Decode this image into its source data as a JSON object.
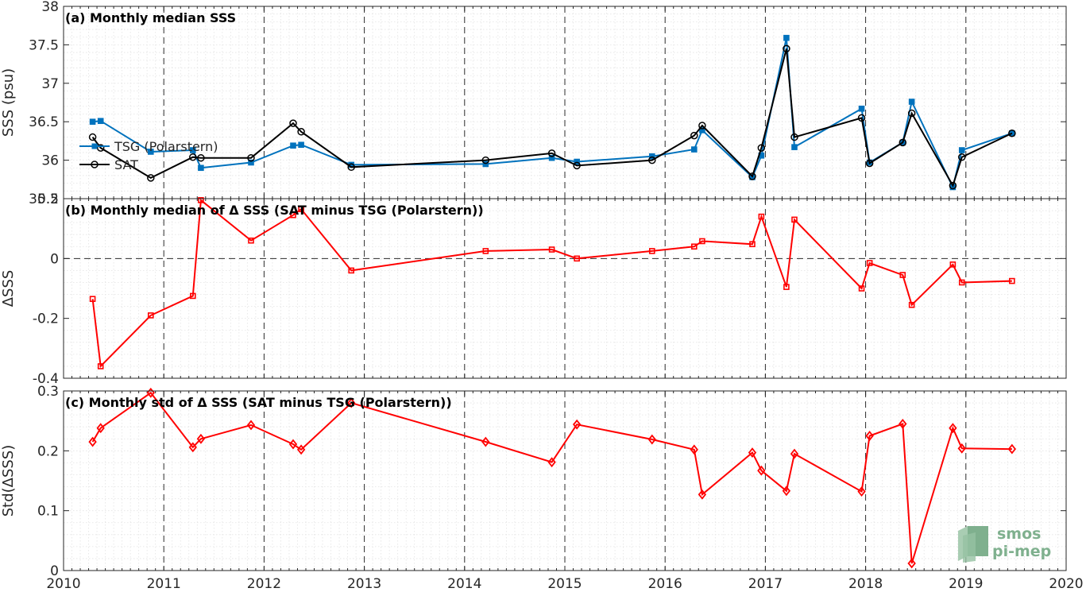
{
  "colors": {
    "tsg": "#0072BD",
    "sat": "#000000",
    "delta": "#FF0000",
    "logo": "#7fb08e"
  },
  "logo": {
    "line1": "smos",
    "line2": "pi-mep"
  },
  "chart_data": [
    {
      "type": "line",
      "title": "(a) Monthly median SSS",
      "xlabel": "",
      "ylabel": "SSS (psu)",
      "xlim": [
        2010,
        2020
      ],
      "ylim": [
        35.5,
        38
      ],
      "grid": true,
      "legend_position": "left",
      "x_ticks": [
        "2010",
        "2011",
        "2012",
        "2013",
        "2014",
        "2015",
        "2016",
        "2017",
        "2018",
        "2019",
        "2020"
      ],
      "y_ticks": [
        {
          "v": 35.5,
          "label": "35.5"
        },
        {
          "v": 36,
          "label": "36"
        },
        {
          "v": 36.5,
          "label": "36.5"
        },
        {
          "v": 37,
          "label": "37"
        },
        {
          "v": 37.5,
          "label": "37.5"
        },
        {
          "v": 38,
          "label": "38"
        }
      ],
      "series": [
        {
          "name": "TSG (Polarstern)",
          "color": "#0072BD",
          "marker": "square",
          "x": [
            2010.29,
            2010.37,
            2010.87,
            2011.29,
            2011.37,
            2011.87,
            2012.29,
            2012.37,
            2012.87,
            2014.21,
            2014.87,
            2015.12,
            2015.87,
            2016.29,
            2016.37,
            2016.87,
            2016.96,
            2017.21,
            2017.29,
            2017.96,
            2018.04,
            2018.37,
            2018.46,
            2018.87,
            2018.96,
            2019.46
          ],
          "y": [
            36.5,
            36.51,
            36.11,
            36.13,
            35.9,
            35.97,
            36.19,
            36.2,
            35.94,
            35.95,
            36.03,
            35.98,
            36.05,
            36.14,
            36.39,
            35.78,
            36.06,
            37.59,
            36.17,
            36.67,
            35.97,
            36.23,
            36.76,
            35.65,
            36.13,
            36.35
          ]
        },
        {
          "name": "SAT",
          "color": "#000000",
          "marker": "circle",
          "x": [
            2010.29,
            2010.37,
            2010.87,
            2011.29,
            2011.37,
            2011.87,
            2012.29,
            2012.37,
            2012.87,
            2014.21,
            2014.87,
            2015.12,
            2015.87,
            2016.29,
            2016.37,
            2016.87,
            2016.96,
            2017.21,
            2017.29,
            2017.96,
            2018.04,
            2018.37,
            2018.46,
            2018.87,
            2018.96,
            2019.46
          ],
          "y": [
            36.3,
            36.16,
            35.77,
            36.04,
            36.03,
            36.03,
            36.48,
            36.37,
            35.91,
            36.0,
            36.09,
            35.93,
            36.0,
            36.32,
            36.45,
            35.79,
            36.16,
            37.45,
            36.3,
            36.55,
            35.96,
            36.23,
            36.61,
            35.67,
            36.04,
            36.35
          ]
        }
      ]
    },
    {
      "type": "line",
      "title": "(b) Monthly median of Δ SSS (SAT minus TSG (Polarstern))",
      "xlabel": "",
      "ylabel": "ΔSSS",
      "xlim": [
        2010,
        2020
      ],
      "ylim": [
        -0.4,
        0.2
      ],
      "grid": true,
      "reference_line": 0,
      "x_ticks": [
        "2010",
        "2011",
        "2012",
        "2013",
        "2014",
        "2015",
        "2016",
        "2017",
        "2018",
        "2019",
        "2020"
      ],
      "y_ticks": [
        {
          "v": -0.4,
          "label": "-0.4"
        },
        {
          "v": -0.2,
          "label": "-0.2"
        },
        {
          "v": 0,
          "label": "0"
        },
        {
          "v": 0.2,
          "label": "0.2"
        }
      ],
      "series": [
        {
          "name": "",
          "color": "#FF0000",
          "marker": "square",
          "x": [
            2010.29,
            2010.37,
            2010.87,
            2011.29,
            2011.37,
            2011.87,
            2012.29,
            2012.37,
            2012.87,
            2014.21,
            2014.87,
            2015.12,
            2015.87,
            2016.29,
            2016.37,
            2016.87,
            2016.96,
            2017.21,
            2017.29,
            2017.96,
            2018.04,
            2018.37,
            2018.46,
            2018.87,
            2018.96,
            2019.46
          ],
          "y": [
            -0.135,
            -0.36,
            -0.19,
            -0.125,
            0.195,
            0.06,
            0.145,
            0.165,
            -0.04,
            0.025,
            0.03,
            0.0,
            0.025,
            0.04,
            0.058,
            0.048,
            0.14,
            -0.095,
            0.13,
            -0.1,
            -0.015,
            -0.055,
            -0.155,
            -0.02,
            -0.08,
            -0.075
          ]
        }
      ]
    },
    {
      "type": "line",
      "title": "(c) Monthly std of Δ SSS (SAT minus TSG (Polarstern))",
      "xlabel": "",
      "ylabel": "Std(ΔSSS)",
      "xlim": [
        2010,
        2020
      ],
      "ylim": [
        0,
        0.3
      ],
      "grid": true,
      "x_ticks": [
        "2010",
        "2011",
        "2012",
        "2013",
        "2014",
        "2015",
        "2016",
        "2017",
        "2018",
        "2019",
        "2020"
      ],
      "y_ticks": [
        {
          "v": 0,
          "label": "0"
        },
        {
          "v": 0.1,
          "label": "0.1"
        },
        {
          "v": 0.2,
          "label": "0.2"
        },
        {
          "v": 0.3,
          "label": "0.3"
        }
      ],
      "series": [
        {
          "name": "",
          "color": "#FF0000",
          "marker": "diamond",
          "x": [
            2010.29,
            2010.37,
            2010.87,
            2011.29,
            2011.37,
            2011.87,
            2012.29,
            2012.37,
            2012.87,
            2014.21,
            2014.87,
            2015.12,
            2015.87,
            2016.29,
            2016.37,
            2016.87,
            2016.96,
            2017.21,
            2017.29,
            2017.96,
            2018.04,
            2018.37,
            2018.46,
            2018.87,
            2018.96,
            2019.46
          ],
          "y": [
            0.215,
            0.238,
            0.297,
            0.206,
            0.22,
            0.243,
            0.211,
            0.202,
            0.28,
            0.215,
            0.181,
            0.244,
            0.219,
            0.202,
            0.127,
            0.197,
            0.167,
            0.133,
            0.195,
            0.132,
            0.225,
            0.245,
            0.012,
            0.238,
            0.204,
            0.203
          ]
        }
      ]
    }
  ]
}
